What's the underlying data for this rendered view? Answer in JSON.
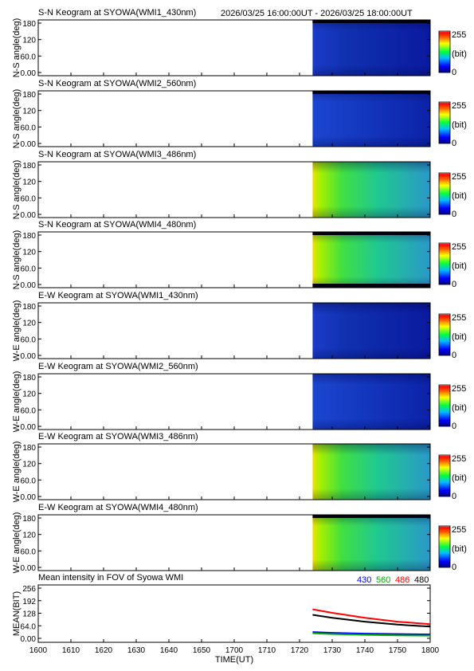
{
  "header": {
    "date_range": "2026/03/25 16:00:00UT - 2026/03/25 18:00:00UT"
  },
  "colorbar": {
    "max_label": "255",
    "unit_label": "(bit)",
    "min_label": "0",
    "colors": [
      "#000080",
      "#0000ff",
      "#0080ff",
      "#00ffff",
      "#00ff00",
      "#ffff00",
      "#ff8000",
      "#ff0000",
      "#ffffff"
    ]
  },
  "x_axis": {
    "label": "TIME(UT)",
    "ticks": [
      "1600",
      "1610",
      "1620",
      "1630",
      "1640",
      "1650",
      "1700",
      "1710",
      "1720",
      "1730",
      "1740",
      "1750",
      "1800"
    ]
  },
  "keogram": {
    "y_ticks": [
      "180",
      "120",
      "60.0",
      "0.00"
    ],
    "data_start_time": "1724"
  },
  "panels": [
    {
      "title": "S-N Keogram at SYOWA(WMI1_430nm)",
      "ylabel": "N-S angle(deg)",
      "profile": "blue_dark",
      "top_band": true,
      "bottom_band": false
    },
    {
      "title": "S-N Keogram at SYOWA(WMI2_560nm)",
      "ylabel": "N-S angle(deg)",
      "profile": "blue",
      "top_band": true,
      "bottom_band": false
    },
    {
      "title": "S-N Keogram at SYOWA(WMI3_486nm)",
      "ylabel": "N-S angle(deg)",
      "profile": "green",
      "top_band": false,
      "bottom_band": false
    },
    {
      "title": "S-N Keogram at SYOWA(WMI4_480nm)",
      "ylabel": "N-S angle(deg)",
      "profile": "green",
      "top_band": true,
      "bottom_band": true
    },
    {
      "title": "E-W Keogram at SYOWA(WMI1_430nm)",
      "ylabel": "W-E angle(deg)",
      "profile": "blue_dark",
      "top_band": false,
      "bottom_band": false
    },
    {
      "title": "E-W Keogram at SYOWA(WMI2_560nm)",
      "ylabel": "W-E angle(deg)",
      "profile": "blue",
      "top_band": false,
      "bottom_band": false
    },
    {
      "title": "E-W Keogram at SYOWA(WMI3_486nm)",
      "ylabel": "W-E angle(deg)",
      "profile": "green",
      "top_band": false,
      "bottom_band": false
    },
    {
      "title": "E-W Keogram at SYOWA(WMI4_480nm)",
      "ylabel": "W-E angle(deg)",
      "profile": "green",
      "top_band": true,
      "bottom_band": false
    }
  ],
  "mean_panel": {
    "title": "Mean intensity in FOV of Syowa WMI",
    "ylabel": "MEAN(BIT)",
    "y_ticks": [
      "256",
      "192",
      "128",
      "64.0",
      "0.00"
    ],
    "legend": [
      {
        "label": "430",
        "color": "#0000ff"
      },
      {
        "label": "560",
        "color": "#00b000"
      },
      {
        "label": "486",
        "color": "#ff0000"
      },
      {
        "label": "480",
        "color": "#000000"
      }
    ]
  },
  "chart_data": {
    "type": "line",
    "title": "Mean intensity in FOV of Syowa WMI",
    "xlabel": "TIME(UT)",
    "ylabel": "MEAN(BIT)",
    "xlim": [
      1600,
      1800
    ],
    "ylim": [
      0,
      256
    ],
    "x": [
      1724,
      1730,
      1740,
      1750,
      1760
    ],
    "series": [
      {
        "name": "430",
        "color": "#0000ff",
        "values": [
          32,
          28,
          24,
          22,
          20
        ]
      },
      {
        "name": "560",
        "color": "#00b000",
        "values": [
          26,
          22,
          18,
          15,
          14
        ]
      },
      {
        "name": "486",
        "color": "#ff0000",
        "values": [
          148,
          130,
          105,
          85,
          72
        ]
      },
      {
        "name": "480",
        "color": "#000000",
        "values": [
          120,
          105,
          85,
          70,
          60
        ]
      }
    ]
  }
}
